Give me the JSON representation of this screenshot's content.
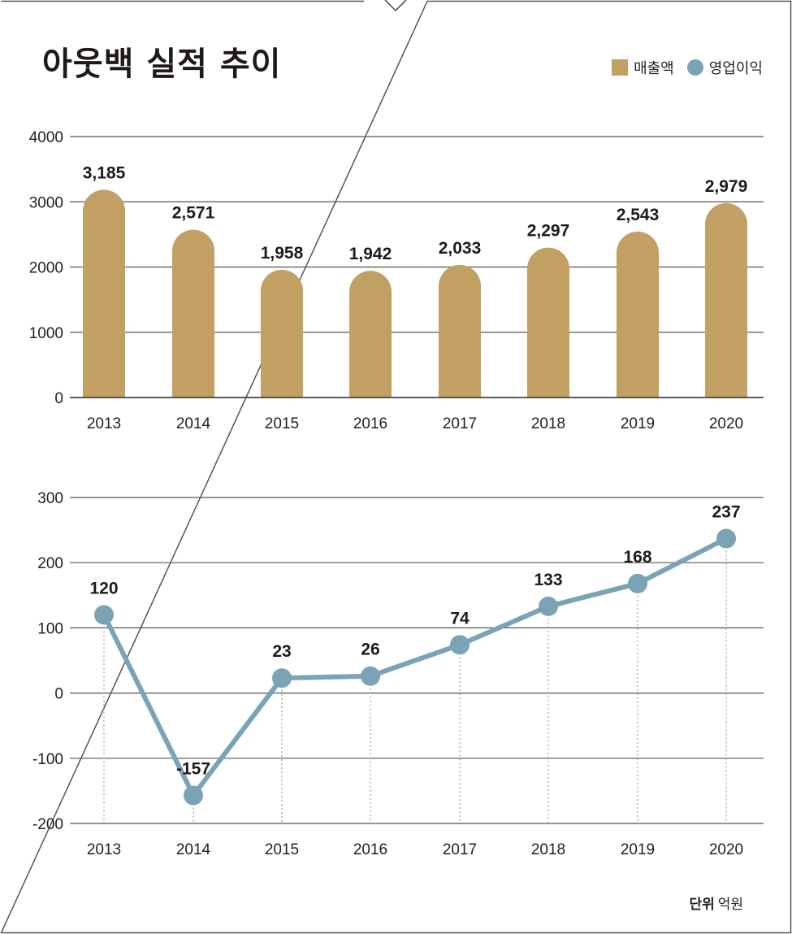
{
  "title": "아웃백 실적 추이",
  "legend": {
    "bar_label": "매출액",
    "line_label": "영업이익"
  },
  "unit": {
    "label": "단위",
    "value": "억원"
  },
  "colors": {
    "bar": "#c29f63",
    "line": "#7ba3b6",
    "grid": "#555555",
    "text": "#1f1a17"
  },
  "chart_data": [
    {
      "type": "bar",
      "series_name": "매출액",
      "categories": [
        "2013",
        "2014",
        "2015",
        "2016",
        "2017",
        "2018",
        "2019",
        "2020"
      ],
      "values": [
        3185,
        2571,
        1958,
        1942,
        2033,
        2297,
        2543,
        2979
      ],
      "value_labels": [
        "3,185",
        "2,571",
        "1,958",
        "1,942",
        "2,033",
        "2,297",
        "2,543",
        "2,979"
      ],
      "ylim": [
        0,
        4000
      ],
      "yticks": [
        0,
        1000,
        2000,
        3000,
        4000
      ],
      "grid": true
    },
    {
      "type": "line",
      "series_name": "영업이익",
      "categories": [
        "2013",
        "2014",
        "2015",
        "2016",
        "2017",
        "2018",
        "2019",
        "2020"
      ],
      "values": [
        120,
        -157,
        23,
        26,
        74,
        133,
        168,
        237
      ],
      "value_labels": [
        "120",
        "-157",
        "23",
        "26",
        "74",
        "133",
        "168",
        "237"
      ],
      "ylim": [
        -200,
        300
      ],
      "yticks": [
        -200,
        -100,
        0,
        100,
        200,
        300
      ],
      "grid": true
    }
  ]
}
